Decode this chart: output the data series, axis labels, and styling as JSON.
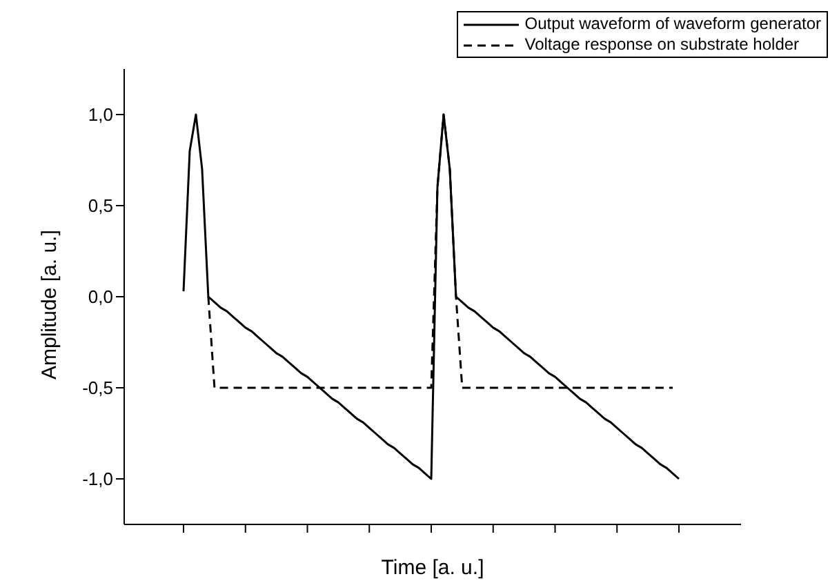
{
  "chart_data": {
    "type": "line",
    "xlabel": "Time [a. u.]",
    "ylabel": "Amplitude [a. u.]",
    "legend": "top right",
    "grid": false,
    "categories": [
      null,
      null,
      null,
      null,
      null,
      null,
      null,
      null,
      null,
      null,
      null,
      null,
      null,
      null,
      null,
      null,
      null,
      null,
      null,
      null,
      null,
      null,
      null,
      null,
      null,
      null,
      null,
      null,
      null,
      null,
      null,
      null,
      null,
      null,
      null,
      null,
      null,
      null,
      null,
      null,
      null,
      null,
      null,
      null,
      null,
      null,
      null,
      null,
      null,
      null,
      null,
      null,
      null,
      null,
      null,
      null,
      null,
      null,
      null,
      null,
      null,
      null,
      null,
      null,
      null,
      null,
      null,
      null,
      null,
      null,
      null,
      null,
      null,
      null,
      null,
      null,
      null,
      null,
      null,
      null,
      null
    ],
    "ylim": [
      -1.25,
      1.25
    ],
    "yticks": [
      {
        "value": -1,
        "label": "-1,0"
      },
      {
        "value": -0.5,
        "label": "-0,5"
      },
      {
        "value": 0,
        "label": "0,0"
      },
      {
        "value": 0.5,
        "label": "0,5"
      },
      {
        "value": 1,
        "label": "1,0"
      }
    ],
    "series": [
      {
        "name": "Output waveform of waveform generator",
        "color": "#000000",
        "line_style": "solid",
        "values": [
          0.03,
          0.8,
          1.0,
          0.7,
          0,
          -0.03,
          -0.06,
          -0.08,
          -0.11,
          -0.14,
          -0.17,
          -0.19,
          -0.22,
          -0.25,
          -0.28,
          -0.31,
          -0.33,
          -0.36,
          -0.39,
          -0.42,
          -0.44,
          -0.47,
          -0.5,
          -0.53,
          -0.56,
          -0.58,
          -0.61,
          -0.64,
          -0.67,
          -0.69,
          -0.72,
          -0.75,
          -0.78,
          -0.81,
          -0.83,
          -0.86,
          -0.89,
          -0.92,
          -0.94,
          -0.97,
          -1.0,
          0.6,
          1.0,
          0.7,
          0,
          -0.03,
          -0.06,
          -0.08,
          -0.11,
          -0.14,
          -0.17,
          -0.19,
          -0.22,
          -0.25,
          -0.28,
          -0.31,
          -0.33,
          -0.36,
          -0.39,
          -0.42,
          -0.44,
          -0.47,
          -0.5,
          -0.53,
          -0.56,
          -0.58,
          -0.61,
          -0.64,
          -0.67,
          -0.69,
          -0.72,
          -0.75,
          -0.78,
          -0.81,
          -0.83,
          -0.86,
          -0.89,
          -0.92,
          -0.94,
          -0.97,
          -1.0
        ]
      },
      {
        "name": "Voltage response on substrate holder",
        "color": "#000000",
        "line_style": "dashed",
        "values": [
          null,
          null,
          null,
          null,
          0,
          -0.5,
          -0.5,
          -0.5,
          -0.5,
          -0.5,
          -0.5,
          -0.5,
          -0.5,
          -0.5,
          -0.5,
          -0.5,
          -0.5,
          -0.5,
          -0.5,
          -0.5,
          -0.5,
          -0.5,
          -0.5,
          -0.5,
          -0.5,
          -0.5,
          -0.5,
          -0.5,
          -0.5,
          -0.5,
          -0.5,
          -0.5,
          -0.5,
          -0.5,
          -0.5,
          -0.5,
          -0.5,
          -0.5,
          -0.5,
          -0.5,
          -0.5,
          0.6,
          1.0,
          0.7,
          0,
          -0.5,
          -0.5,
          -0.5,
          -0.5,
          -0.5,
          -0.5,
          -0.5,
          -0.5,
          -0.5,
          -0.5,
          -0.5,
          -0.5,
          -0.5,
          -0.5,
          -0.5,
          -0.5,
          -0.5,
          -0.5,
          -0.5,
          -0.5,
          -0.5,
          -0.5,
          -0.5,
          -0.5,
          -0.5,
          -0.5,
          -0.5,
          -0.5,
          -0.5,
          -0.5,
          -0.5,
          -0.5,
          -0.5,
          -0.5,
          -0.5,
          null
        ]
      }
    ]
  }
}
